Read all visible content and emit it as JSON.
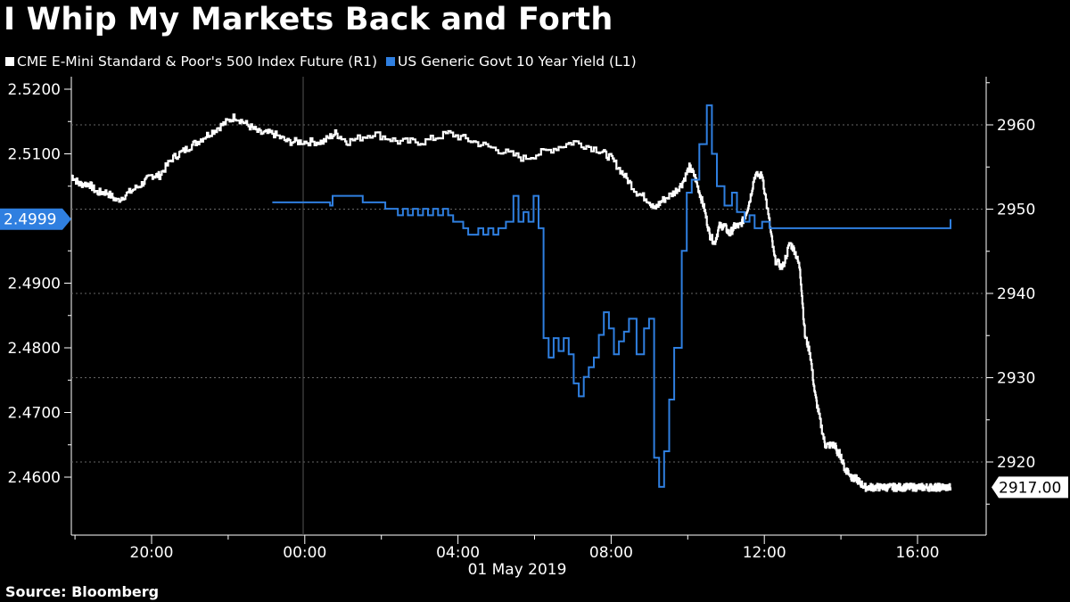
{
  "title": "I Whip My Markets Back and Forth",
  "source": "Source: Bloomberg",
  "legend": [
    {
      "label": "CME E-Mini Standard & Poor's 500 Index Future  (R1)",
      "color": "#ffffff"
    },
    {
      "label": "US Generic Govt 10 Year Yield  (L1)",
      "color": "#2f7fe0"
    }
  ],
  "chart_data": {
    "type": "line",
    "x_axis": {
      "tick_labels": [
        "20:00",
        "00:00",
        "04:00",
        "08:00",
        "12:00",
        "16:00"
      ],
      "date_label": "01 May 2019",
      "domain": [
        "2019-04-30 18:00",
        "2019-05-01 19:30"
      ]
    },
    "y_left": {
      "label": "",
      "ticks": [
        2.46,
        2.47,
        2.48,
        2.49,
        2.5,
        2.51,
        2.52
      ],
      "tick_labels": [
        "2.4600",
        "2.4700",
        "2.4800",
        "2.4900",
        "",
        "2.5100",
        "2.5200"
      ],
      "range": [
        2.4555,
        2.5235
      ],
      "last_value_label": "2.4999",
      "last_value": 2.4999,
      "last_value_color": "#2f7fe0"
    },
    "y_right": {
      "label": "",
      "ticks": [
        2920,
        2930,
        2940,
        2950,
        2960
      ],
      "tick_labels": [
        "2920",
        "2930",
        "2940",
        "2950",
        "2960"
      ],
      "range": [
        2913.7,
        2965.2
      ],
      "last_value_label": "2917.00",
      "last_value": 2917.0,
      "last_value_color": "#ffffff"
    },
    "gridlines": "dotted horizontal at right-axis ticks; vertical at midnight",
    "series": [
      {
        "name": "CME E-Mini Standard & Poor's 500 Index Future  (R1)",
        "axis": "right",
        "color": "#ffffff",
        "noisy": true,
        "hours": [
          0,
          0.3,
          0.7,
          1.0,
          1.4,
          1.8,
          2.3,
          2.8,
          3.2,
          3.5,
          4.0,
          4.5,
          5.0,
          5.5,
          6.0,
          6.5,
          7.0,
          7.5,
          8.0,
          8.6,
          9.2,
          10.0,
          10.5,
          11.0,
          12.0,
          13.0,
          14.0,
          15.0,
          16.0,
          17.0,
          18.0,
          19.0,
          20.0,
          21.0,
          21.5,
          22.0,
          22.5,
          23.0,
          23.2,
          23.5,
          24.0,
          24.3,
          24.6,
          24.8,
          25.0,
          25.2,
          25.4,
          25.6,
          25.8,
          26.0,
          26.2,
          26.4,
          26.6,
          26.8,
          27.0,
          27.2,
          27.5,
          27.8,
          28.0,
          28.3,
          28.6,
          28.8,
          29.0,
          29.2,
          29.4,
          29.6,
          29.8,
          30.0,
          30.2,
          30.4,
          30.5,
          30.6,
          30.8,
          30.9,
          31.1,
          31.25,
          31.4,
          31.6,
          31.8,
          32.0,
          32.2,
          32.4,
          32.6,
          32.8,
          33.0,
          33.2,
          33.4,
          33.6,
          33.8,
          34.0,
          34.2,
          34.4,
          34.5,
          34.6,
          34.8,
          35.0
        ],
        "values": [
          2954,
          2953,
          2953,
          2952,
          2952,
          2951,
          2952,
          2953,
          2954,
          2954,
          2956,
          2957,
          2958,
          2959,
          2960,
          2961,
          2960,
          2959,
          2959,
          2958,
          2958,
          2958,
          2959,
          2958,
          2959,
          2958,
          2958,
          2959,
          2958,
          2957,
          2956,
          2957,
          2958,
          2957,
          2956,
          2954,
          2952,
          2951,
          2950,
          2951,
          2952,
          2953,
          2955,
          2954,
          2952,
          2950,
          2947,
          2946,
          2948,
          2948,
          2947,
          2948,
          2948,
          2949,
          2951,
          2954,
          2954,
          2948,
          2944,
          2943,
          2946,
          2945,
          2943,
          2935,
          2933,
          2928,
          2925,
          2922,
          2922,
          2922,
          2921,
          2921,
          2919,
          2919,
          2918,
          2918,
          2917.5,
          2917.0,
          2917.0,
          2917.0,
          2917.0,
          2917.0,
          2917.0,
          2917.0,
          2917.0,
          2917.0,
          2917.0,
          2917.0,
          2917.0,
          2917.0,
          2917.0,
          2917.0,
          2917.0,
          2917.0,
          2917.0,
          2917.0
        ]
      },
      {
        "name": "US Generic Govt 10 Year Yield  (L1)",
        "axis": "left",
        "color": "#2f7fe0",
        "noisy": false,
        "hours": [
          8.0,
          10.0,
          10.3,
          10.4,
          11.0,
          11.5,
          11.6,
          12.0,
          12.5,
          13.0,
          13.2,
          13.4,
          13.6,
          13.8,
          14.0,
          14.2,
          14.4,
          14.6,
          14.8,
          15.0,
          15.2,
          15.4,
          15.6,
          15.8,
          16.0,
          16.2,
          16.4,
          16.6,
          16.8,
          17.0,
          17.3,
          17.6,
          17.8,
          18.0,
          18.2,
          18.4,
          18.6,
          18.8,
          19.0,
          19.2,
          19.4,
          19.6,
          19.8,
          20.0,
          20.2,
          20.4,
          20.6,
          20.8,
          21.0,
          21.2,
          21.4,
          21.6,
          21.8,
          22.0,
          22.2,
          22.5,
          22.8,
          23.0,
          23.2,
          23.4,
          23.6,
          23.8,
          24.0,
          24.3,
          24.5,
          24.7,
          25.0,
          25.3,
          25.5,
          25.7,
          26.0,
          26.3,
          26.5,
          26.8,
          27.0,
          27.2,
          27.5,
          27.8,
          28.0,
          28.3,
          28.5,
          28.8,
          29.0,
          29.2,
          29.4,
          29.6,
          29.8,
          30.0,
          30.2,
          30.4,
          30.6,
          30.8,
          31.0,
          31.2,
          31.4,
          31.6,
          31.8,
          32.0,
          32.2,
          32.4,
          32.6,
          32.8,
          33.0,
          33.2,
          33.4,
          33.6,
          33.8,
          34.0,
          34.2,
          34.4,
          34.6,
          34.8,
          35.0
        ],
        "values": [
          2.5025,
          2.5025,
          2.502,
          2.5035,
          2.5035,
          2.5035,
          2.5025,
          2.5025,
          2.5015,
          2.5005,
          2.5015,
          2.5005,
          2.5015,
          2.5005,
          2.5015,
          2.5005,
          2.5015,
          2.5005,
          2.5015,
          2.5005,
          2.4995,
          2.4995,
          2.4985,
          2.4975,
          2.4975,
          2.4985,
          2.4975,
          2.4985,
          2.4975,
          2.4985,
          2.4995,
          2.5035,
          2.4995,
          2.501,
          2.4995,
          2.5035,
          2.4985,
          2.4815,
          2.4785,
          2.4815,
          2.4795,
          2.4815,
          2.479,
          2.4745,
          2.4725,
          2.4755,
          2.477,
          2.4785,
          2.482,
          2.4855,
          2.483,
          2.479,
          2.481,
          2.4825,
          2.4845,
          2.479,
          2.483,
          2.4845,
          2.463,
          2.4585,
          2.464,
          2.472,
          2.48,
          2.495,
          2.504,
          2.506,
          2.5115,
          2.5175,
          2.51,
          2.505,
          2.502,
          2.504,
          2.501,
          2.4995,
          2.5005,
          2.4985,
          2.4995,
          2.4985,
          2.4985,
          2.4985,
          2.4985,
          2.4985,
          2.4985,
          2.4985,
          2.4985,
          2.4985,
          2.4985,
          2.4985,
          2.4985,
          2.4985,
          2.4985,
          2.4985,
          2.4985,
          2.4985,
          2.4985,
          2.4985,
          2.4985,
          2.4985,
          2.4985,
          2.4985,
          2.4985,
          2.4985,
          2.4985,
          2.4985,
          2.4985,
          2.4985,
          2.4985,
          2.4985,
          2.4985,
          2.4985,
          2.4985,
          2.4985,
          2.4999
        ]
      }
    ]
  }
}
